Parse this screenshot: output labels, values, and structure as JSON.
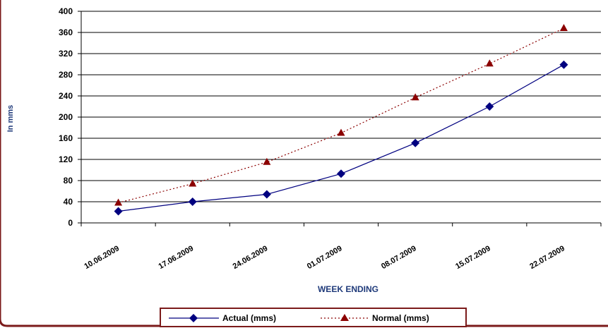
{
  "chart_data": {
    "type": "line",
    "title": "",
    "xlabel": "WEEK ENDING",
    "ylabel": "In mms",
    "categories": [
      "10.06.2009",
      "17.06.2009",
      "24.06.2009",
      "01.07.2009",
      "08.07.2009",
      "15.07.2009",
      "22.07.2009"
    ],
    "ylim": [
      0,
      400
    ],
    "yticks": [
      0,
      40,
      80,
      120,
      160,
      200,
      240,
      280,
      320,
      360,
      400
    ],
    "grid": true,
    "legend_position": "bottom",
    "series": [
      {
        "name": "Actual (mms)",
        "values": [
          22,
          40,
          54,
          93,
          151,
          220,
          299
        ],
        "color": "#000080",
        "marker": "diamond",
        "line": "solid"
      },
      {
        "name": "Normal (mms)",
        "values": [
          38,
          74,
          115,
          170,
          237,
          301,
          368
        ],
        "color": "#8b0000",
        "marker": "triangle",
        "line": "dotted"
      }
    ]
  },
  "colors": {
    "frame": "#7b1a1a",
    "axis_text": "#000000",
    "ylabel_text": "#1f3a7a",
    "xlabel_text": "#1f3a7a"
  }
}
